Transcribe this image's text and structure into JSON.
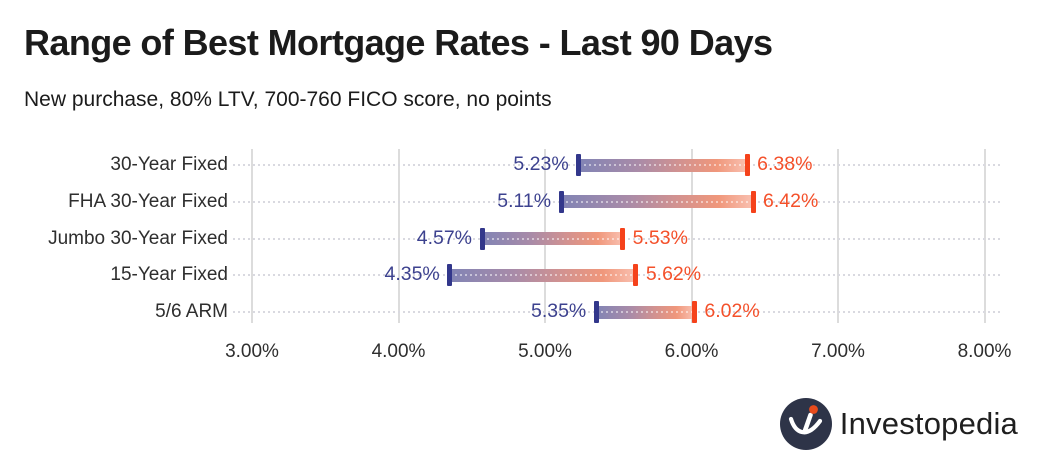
{
  "chart_data": {
    "type": "range_bar",
    "title": "Range of Best Mortgage Rates - Last 90 Days",
    "subtitle": "New purchase, 80% LTV, 700-760 FICO score, no points",
    "categories": [
      "30-Year Fixed",
      "FHA 30-Year Fixed",
      "Jumbo 30-Year Fixed",
      "15-Year Fixed",
      "5/6 ARM"
    ],
    "series": [
      {
        "name": "Low",
        "values": [
          5.23,
          5.11,
          4.57,
          4.35,
          5.35
        ]
      },
      {
        "name": "High",
        "values": [
          6.38,
          6.42,
          5.53,
          5.62,
          6.02
        ]
      }
    ],
    "value_labels": {
      "low": [
        "5.23%",
        "5.11%",
        "4.57%",
        "4.35%",
        "5.35%"
      ],
      "high": [
        "6.38%",
        "6.42%",
        "5.53%",
        "5.62%",
        "6.02%"
      ]
    },
    "xlabel": "",
    "ylabel": "",
    "xlim": [
      3,
      8
    ],
    "xtick_values": [
      3,
      4,
      5,
      6,
      7,
      8
    ],
    "xtick_labels": [
      "3.00%",
      "4.00%",
      "5.00%",
      "6.00%",
      "7.00%",
      "8.00%"
    ],
    "grid": "vertical solid gridlines, horizontal dotted row guides",
    "legend": "none",
    "colors": {
      "low_tick": "#32378b",
      "high_tick": "#f5421b",
      "low_label_text": "#3d428f",
      "high_label_text": "#f4502a",
      "bar_gradient": [
        "#8184b5",
        "#a98ba8",
        "#d29290",
        "#f0977b",
        "#f8bcab"
      ],
      "gridline": "#dcdcdc",
      "dotted_guide": "#d9d9e0",
      "axis_text": "#2e2e2e",
      "category_text": "#2e2e2e",
      "title_text": "#1b1b1b"
    }
  },
  "branding": {
    "logo_text": "Investopedia",
    "mark_bg": "#2e3448",
    "mark_dot": "#e84b1c",
    "mark_glyph": "i"
  }
}
